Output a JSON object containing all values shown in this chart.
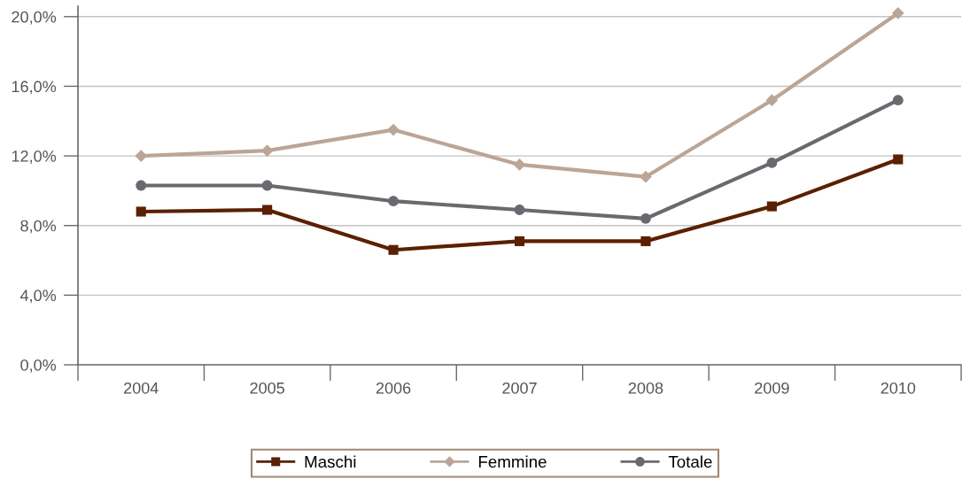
{
  "chart_data": {
    "type": "line",
    "categories": [
      "2004",
      "2005",
      "2006",
      "2007",
      "2008",
      "2009",
      "2010"
    ],
    "series": [
      {
        "name": "Maschi",
        "color": "#5a2000",
        "marker": "square",
        "values": [
          8.8,
          8.9,
          6.6,
          7.1,
          7.1,
          9.1,
          11.8
        ]
      },
      {
        "name": "Femmine",
        "color": "#bba596",
        "marker": "diamond",
        "values": [
          12.0,
          12.3,
          13.5,
          11.5,
          10.8,
          15.2,
          20.2
        ]
      },
      {
        "name": "Totale",
        "color": "#696970",
        "marker": "circle",
        "values": [
          10.3,
          10.3,
          9.4,
          8.9,
          8.4,
          11.6,
          15.2
        ]
      }
    ],
    "ylim": [
      0,
      20.6
    ],
    "yticks": [
      {
        "value": 0,
        "label": "0,0%"
      },
      {
        "value": 4,
        "label": "4,0%"
      },
      {
        "value": 8,
        "label": "8,0%"
      },
      {
        "value": 12,
        "label": "12,0%"
      },
      {
        "value": 16,
        "label": "16,0%"
      },
      {
        "value": 20,
        "label": "20,0%"
      }
    ],
    "grid": "y",
    "legend": "bottom",
    "line_style": "solid"
  }
}
